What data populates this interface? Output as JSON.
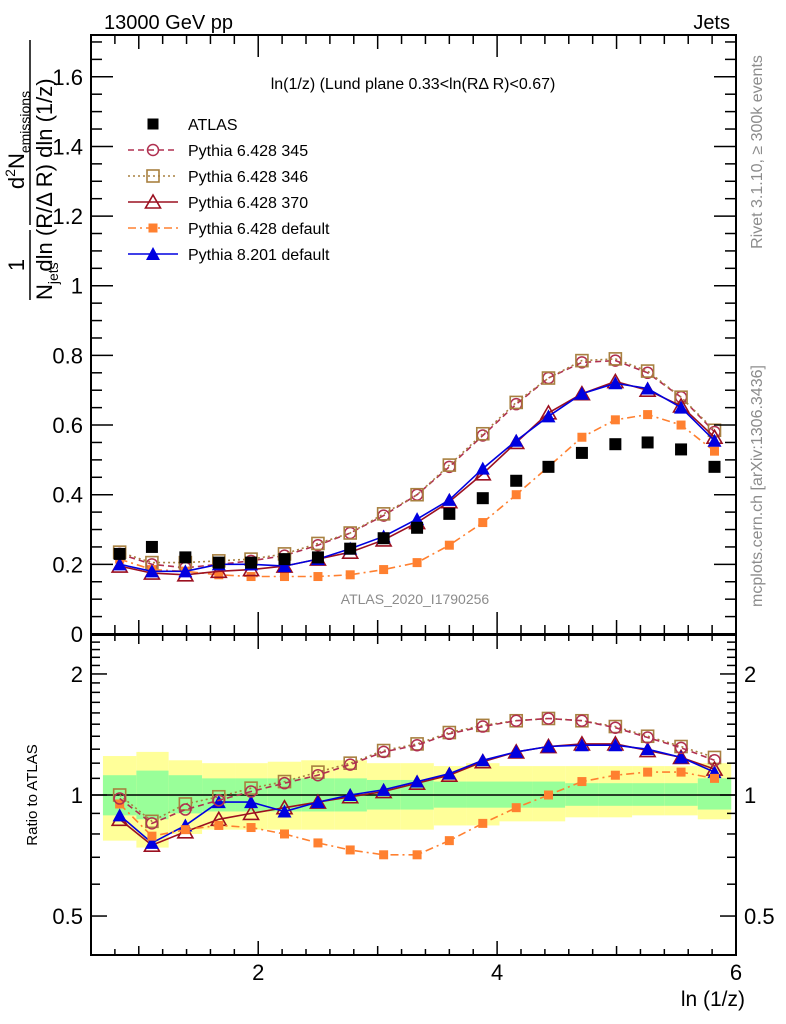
{
  "header": {
    "left": "13000 GeV pp",
    "right": "Jets"
  },
  "side_labels": {
    "rivet": "Rivet 3.1.10, ≥ 300k events",
    "mcplots": "mcplots.cern.ch [arXiv:1306.3436]"
  },
  "chart_data": [
    {
      "type": "line",
      "panel": "main",
      "title": "ln(1/z) (Lund plane 0.33<ln(RΔ R)<0.67)",
      "watermark": "ATLAS_2020_I1790256",
      "ylabel": "1/N_jets d²N_emissions / dln(R/ΔR) dln(1/z)",
      "ylabel_parts": {
        "frac_num": "1",
        "frac_den": "N",
        "frac_den_sub": "jets",
        "num_d": "d",
        "num_sup": "2",
        "num_N": "N",
        "num_sub": "emissions",
        "den_rest": "dln (R/Δ R) dln (1/z)"
      },
      "xlabel": "ln (1/z)",
      "xlim": [
        0.6,
        6.0
      ],
      "ylim": [
        0,
        1.72
      ],
      "yticks": [
        {
          "v": 0,
          "label": "0"
        },
        {
          "v": 0.2,
          "label": "0.2"
        },
        {
          "v": 0.4,
          "label": "0.4"
        },
        {
          "v": 0.6,
          "label": "0.6"
        },
        {
          "v": 0.8,
          "label": "0.8"
        },
        {
          "v": 1.0,
          "label": "1"
        },
        {
          "v": 1.2,
          "label": "1.2"
        },
        {
          "v": 1.4,
          "label": "1.4"
        },
        {
          "v": 1.6,
          "label": "1.6"
        }
      ],
      "legend_position": "top-left",
      "x": [
        0.84,
        1.11,
        1.39,
        1.67,
        1.94,
        2.22,
        2.5,
        2.77,
        3.05,
        3.33,
        3.6,
        3.88,
        4.16,
        4.43,
        4.71,
        4.99,
        5.26,
        5.54,
        5.82
      ],
      "series": [
        {
          "name": "ATLAS",
          "color": "#000000",
          "marker": "filled-square",
          "line": "none",
          "values": [
            0.23,
            0.25,
            0.22,
            0.205,
            0.205,
            0.215,
            0.22,
            0.245,
            0.275,
            0.305,
            0.345,
            0.39,
            0.44,
            0.48,
            0.52,
            0.545,
            0.55,
            0.53,
            0.48
          ]
        },
        {
          "name": "Pythia 6.428 345",
          "color": "#b03050",
          "marker": "open-circle",
          "line": "dashed",
          "values": [
            0.23,
            0.2,
            0.19,
            0.2,
            0.21,
            0.225,
            0.255,
            0.29,
            0.34,
            0.4,
            0.48,
            0.57,
            0.66,
            0.735,
            0.78,
            0.785,
            0.75,
            0.68,
            0.58
          ]
        },
        {
          "name": "Pythia 6.428 346",
          "color": "#a88040",
          "marker": "open-square",
          "line": "dotted",
          "values": [
            0.235,
            0.205,
            0.205,
            0.21,
            0.215,
            0.23,
            0.26,
            0.29,
            0.345,
            0.4,
            0.485,
            0.575,
            0.665,
            0.735,
            0.785,
            0.79,
            0.755,
            0.68,
            0.585
          ]
        },
        {
          "name": "Pythia 6.428 370",
          "color": "#9b1020",
          "marker": "open-triangle",
          "line": "solid",
          "values": [
            0.195,
            0.175,
            0.17,
            0.18,
            0.185,
            0.195,
            0.215,
            0.235,
            0.27,
            0.32,
            0.38,
            0.46,
            0.55,
            0.635,
            0.69,
            0.725,
            0.7,
            0.655,
            0.565
          ]
        },
        {
          "name": "Pythia 6.428 default",
          "color": "#ff8030",
          "marker": "filled-square-small",
          "line": "dashdot",
          "values": [
            0.215,
            0.185,
            0.18,
            0.17,
            0.165,
            0.165,
            0.165,
            0.17,
            0.185,
            0.205,
            0.255,
            0.32,
            0.4,
            0.48,
            0.565,
            0.615,
            0.63,
            0.6,
            0.525
          ]
        },
        {
          "name": "Pythia 8.201 default",
          "color": "#0000e0",
          "marker": "filled-triangle",
          "line": "solid",
          "values": [
            0.2,
            0.18,
            0.18,
            0.2,
            0.2,
            0.195,
            0.215,
            0.245,
            0.28,
            0.33,
            0.385,
            0.475,
            0.555,
            0.625,
            0.69,
            0.72,
            0.705,
            0.65,
            0.555
          ]
        }
      ]
    },
    {
      "type": "line",
      "panel": "ratio",
      "ylabel": "Ratio to ATLAS",
      "xlabel": "ln (1/z)",
      "yscale": "log",
      "xlim": [
        0.6,
        6.0
      ],
      "ylim": [
        0.4,
        2.5
      ],
      "yticks": [
        {
          "v": 0.5,
          "label": "0.5"
        },
        {
          "v": 1,
          "label": "1"
        },
        {
          "v": 2,
          "label": "2"
        }
      ],
      "xticks": [
        {
          "v": 2,
          "label": "2"
        },
        {
          "v": 4,
          "label": "4"
        },
        {
          "v": 6,
          "label": "6"
        }
      ],
      "bin_edges": [
        0.7,
        0.98,
        1.25,
        1.53,
        1.81,
        2.08,
        2.36,
        2.64,
        2.91,
        3.19,
        3.47,
        3.74,
        4.02,
        4.3,
        4.57,
        4.85,
        5.13,
        5.4,
        5.68,
        5.96
      ],
      "band_yellow": {
        "color": "#ffff99",
        "upper": [
          1.25,
          1.28,
          1.22,
          1.2,
          1.2,
          1.21,
          1.22,
          1.22,
          1.2,
          1.2,
          1.18,
          1.2,
          1.18,
          1.18,
          1.18,
          1.18,
          1.18,
          1.18,
          1.2
        ],
        "lower": [
          0.77,
          0.74,
          0.8,
          0.82,
          0.82,
          0.82,
          0.82,
          0.82,
          0.82,
          0.82,
          0.84,
          0.84,
          0.86,
          0.86,
          0.88,
          0.88,
          0.89,
          0.89,
          0.87
        ]
      },
      "band_green": {
        "color": "#99ff99",
        "upper": [
          1.12,
          1.15,
          1.12,
          1.1,
          1.1,
          1.1,
          1.1,
          1.1,
          1.09,
          1.09,
          1.08,
          1.08,
          1.08,
          1.08,
          1.07,
          1.07,
          1.07,
          1.07,
          1.1
        ],
        "lower": [
          0.89,
          0.87,
          0.9,
          0.91,
          0.91,
          0.91,
          0.91,
          0.91,
          0.92,
          0.92,
          0.93,
          0.93,
          0.93,
          0.93,
          0.94,
          0.94,
          0.94,
          0.94,
          0.92
        ]
      },
      "x": [
        0.84,
        1.11,
        1.39,
        1.67,
        1.94,
        2.22,
        2.5,
        2.77,
        3.05,
        3.33,
        3.6,
        3.88,
        4.16,
        4.43,
        4.71,
        4.99,
        5.26,
        5.54,
        5.82
      ],
      "series": [
        {
          "name": "Pythia 6.428 345",
          "color": "#b03050",
          "marker": "open-circle",
          "line": "dashed",
          "values": [
            0.98,
            0.85,
            0.92,
            0.97,
            1.02,
            1.07,
            1.12,
            1.19,
            1.28,
            1.33,
            1.42,
            1.48,
            1.53,
            1.55,
            1.53,
            1.47,
            1.39,
            1.31,
            1.22
          ]
        },
        {
          "name": "Pythia 6.428 346",
          "color": "#a88040",
          "marker": "open-square",
          "line": "dotted",
          "values": [
            1.0,
            0.86,
            0.95,
            0.99,
            1.04,
            1.08,
            1.14,
            1.2,
            1.29,
            1.34,
            1.43,
            1.49,
            1.53,
            1.55,
            1.53,
            1.48,
            1.4,
            1.32,
            1.24
          ]
        },
        {
          "name": "Pythia 6.428 370",
          "color": "#9b1020",
          "marker": "open-triangle",
          "line": "solid",
          "values": [
            0.87,
            0.75,
            0.81,
            0.87,
            0.9,
            0.93,
            0.96,
            0.99,
            1.02,
            1.07,
            1.12,
            1.21,
            1.28,
            1.32,
            1.34,
            1.34,
            1.29,
            1.24,
            1.16
          ]
        },
        {
          "name": "Pythia 6.428 default",
          "color": "#ff8030",
          "marker": "filled-square-small",
          "line": "dashdot",
          "values": [
            0.95,
            0.79,
            0.82,
            0.84,
            0.83,
            0.8,
            0.76,
            0.73,
            0.71,
            0.71,
            0.77,
            0.85,
            0.93,
            1.0,
            1.08,
            1.12,
            1.14,
            1.14,
            1.1
          ]
        },
        {
          "name": "Pythia 8.201 default",
          "color": "#0000e0",
          "marker": "filled-triangle",
          "line": "solid",
          "values": [
            0.89,
            0.76,
            0.84,
            0.96,
            0.96,
            0.91,
            0.96,
            1.0,
            1.03,
            1.08,
            1.13,
            1.22,
            1.28,
            1.32,
            1.33,
            1.33,
            1.3,
            1.24,
            1.14
          ]
        }
      ]
    }
  ]
}
